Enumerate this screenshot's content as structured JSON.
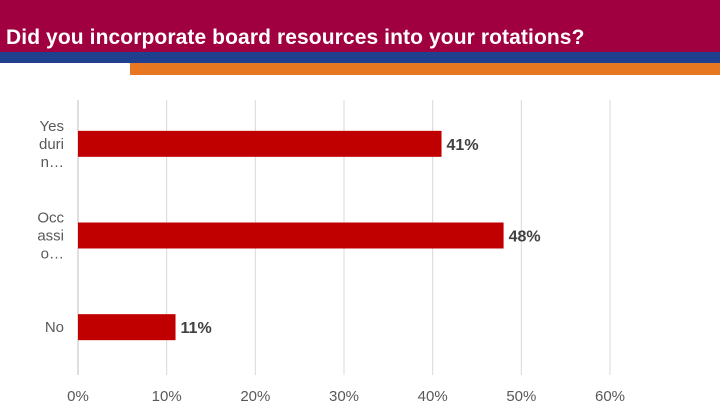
{
  "header": {
    "title": "Did you incorporate board resources into your rotations?"
  },
  "colors": {
    "header_bg": "#a0003f",
    "stripe_blue": "#1f3f8f",
    "stripe_orange": "#e87722",
    "bar": "#c00000",
    "gridline": "#d9d9d9"
  },
  "chart_data": {
    "type": "bar",
    "orientation": "horizontal",
    "categories": [
      [
        "Yes",
        "duri",
        "n…"
      ],
      [
        "Occ",
        "assi",
        "o…"
      ],
      [
        "No"
      ]
    ],
    "values": [
      41,
      48,
      11
    ],
    "value_labels": [
      "41%",
      "48%",
      "11%"
    ],
    "xlim": [
      0,
      60
    ],
    "ticks": [
      0,
      10,
      20,
      30,
      40,
      50,
      60
    ],
    "tick_labels": [
      "0%",
      "10%",
      "20%",
      "30%",
      "40%",
      "50%",
      "60%"
    ],
    "grid": true,
    "legend": "none"
  }
}
